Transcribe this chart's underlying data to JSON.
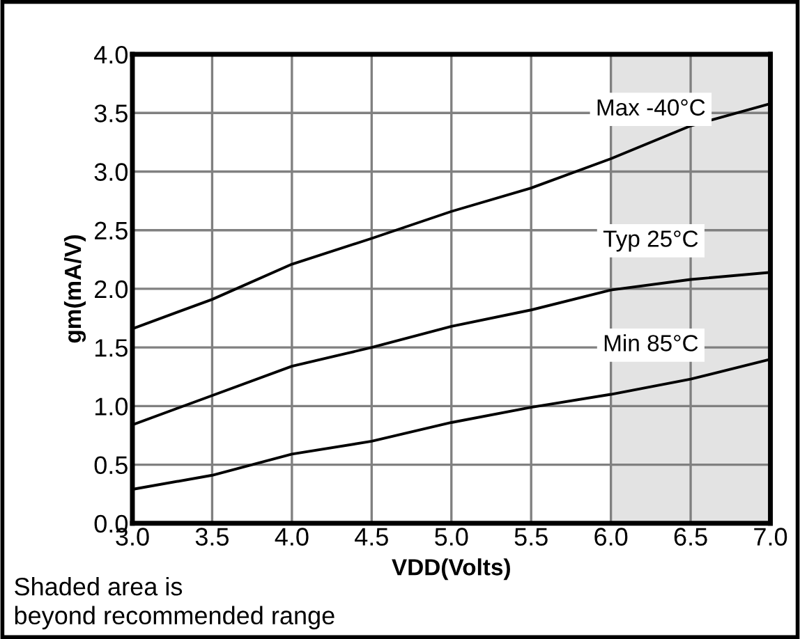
{
  "chart_data": {
    "type": "line",
    "xlabel": "VDD(Volts)",
    "ylabel": "gm(mA/V)",
    "x": [
      3.0,
      3.5,
      4.0,
      4.5,
      5.0,
      5.5,
      6.0,
      6.5,
      7.0
    ],
    "series": [
      {
        "name": "Max -40°C",
        "color": "#000000",
        "values": [
          1.66,
          1.91,
          2.21,
          2.43,
          2.66,
          2.86,
          3.11,
          3.39,
          3.58
        ]
      },
      {
        "name": "Typ 25°C",
        "color": "#000000",
        "values": [
          0.84,
          1.09,
          1.34,
          1.5,
          1.68,
          1.82,
          1.99,
          2.08,
          2.14
        ]
      },
      {
        "name": "Min 85°C",
        "color": "#000000",
        "values": [
          0.29,
          0.41,
          0.59,
          0.7,
          0.86,
          0.99,
          1.1,
          1.23,
          1.4
        ]
      }
    ],
    "xlim": [
      3.0,
      7.0
    ],
    "xticks": [
      {
        "value": 3.0,
        "label": "3.0"
      },
      {
        "value": 3.5,
        "label": "3.5"
      },
      {
        "value": 4.0,
        "label": "4.0"
      },
      {
        "value": 4.5,
        "label": "4.5"
      },
      {
        "value": 5.0,
        "label": "5.0"
      },
      {
        "value": 5.5,
        "label": "5.5"
      },
      {
        "value": 6.0,
        "label": "6.0"
      },
      {
        "value": 6.5,
        "label": "6.5"
      },
      {
        "value": 7.0,
        "label": "7.0"
      }
    ],
    "ylim": [
      0.0,
      4.0
    ],
    "yticks": [
      {
        "value": 0.0,
        "label": "0.0"
      },
      {
        "value": 0.5,
        "label": "0.5"
      },
      {
        "value": 1.0,
        "label": "1.0"
      },
      {
        "value": 1.5,
        "label": "1.5"
      },
      {
        "value": 2.0,
        "label": "2.0"
      },
      {
        "value": 2.5,
        "label": "2.5"
      },
      {
        "value": 3.0,
        "label": "3.0"
      },
      {
        "value": 3.5,
        "label": "3.5"
      },
      {
        "value": 4.0,
        "label": "4.0"
      }
    ],
    "bands": [
      {
        "axis": "x",
        "from": 6.0,
        "to": 7.0,
        "color": "#e3e3e3"
      }
    ],
    "grid": true,
    "marker": "none",
    "line_style": "solid",
    "annotations": [
      "Shaded area is\nbeyond recommended range"
    ]
  }
}
